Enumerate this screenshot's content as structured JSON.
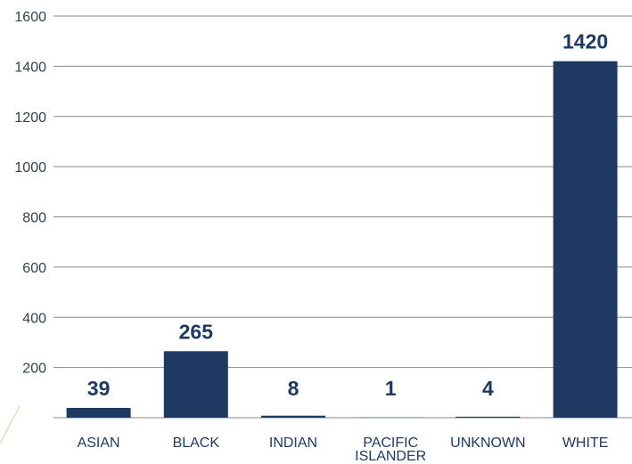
{
  "chart_data": {
    "type": "bar",
    "title": "",
    "xlabel": "",
    "ylabel": "",
    "categories": [
      "ASIAN",
      "BLACK",
      "INDIAN",
      "PACIFIC ISLANDER",
      "UNKNOWN",
      "WHITE"
    ],
    "category_lines": [
      [
        "ASIAN"
      ],
      [
        "BLACK"
      ],
      [
        "INDIAN"
      ],
      [
        "PACIFIC",
        "ISLANDER"
      ],
      [
        "UNKNOWN"
      ],
      [
        "WHITE"
      ]
    ],
    "values": [
      39,
      265,
      8,
      1,
      4,
      1420
    ],
    "data_labels": [
      "39",
      "265",
      "8",
      "1",
      "4",
      "1420"
    ],
    "yticks": [
      200,
      400,
      600,
      800,
      1000,
      1200,
      1400,
      1600
    ],
    "ylim": [
      0,
      1600
    ],
    "grid": true,
    "legend": "none",
    "colors": {
      "bar": "#1e3a63",
      "label": "#1e3a63",
      "grid": "#8a8a8a",
      "tick": "#333f4f"
    }
  }
}
